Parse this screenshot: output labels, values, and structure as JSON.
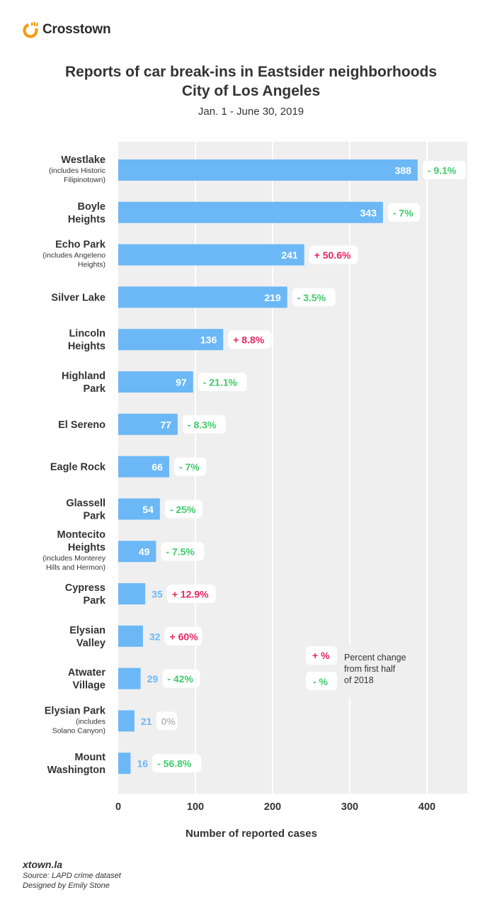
{
  "brand": {
    "name": "Crosstown",
    "icon": "crosstown-logo-icon",
    "color": "#f39c12"
  },
  "chart_data": {
    "type": "bar",
    "orientation": "horizontal",
    "title": "Reports of car break-ins in Eastsider neighborhoods",
    "title_line2": "City of Los Angeles",
    "subtitle": "Jan. 1 - June 30, 2019",
    "xlabel": "Number of reported cases",
    "xlim": [
      0,
      450
    ],
    "xticks": [
      0,
      100,
      200,
      300,
      400
    ],
    "xtick_labels": [
      "0",
      "100",
      "200",
      "300",
      "400"
    ],
    "grid": true,
    "bar_color": "#6cb8f6",
    "plot_bg": "#efefef",
    "pos_color": "#e8245e",
    "neg_color": "#3fcc6a",
    "zero_color": "#bbbbbb",
    "categories": [
      {
        "name": [
          "Westlake"
        ],
        "note": [
          "(includes Historic",
          "Filipinotown)"
        ],
        "value": 388,
        "change": "- 9.1%",
        "dir": "neg"
      },
      {
        "name": [
          "Boyle",
          "Heights"
        ],
        "note": [],
        "value": 343,
        "change": "- 7%",
        "dir": "neg"
      },
      {
        "name": [
          "Echo Park"
        ],
        "note": [
          "(includes Angeleno",
          "Heights)"
        ],
        "value": 241,
        "change": "+ 50.6%",
        "dir": "pos"
      },
      {
        "name": [
          "Silver Lake"
        ],
        "note": [],
        "value": 219,
        "change": "- 3.5%",
        "dir": "neg"
      },
      {
        "name": [
          "Lincoln",
          "Heights"
        ],
        "note": [],
        "value": 136,
        "change": "+ 8.8%",
        "dir": "pos"
      },
      {
        "name": [
          "Highland",
          "Park"
        ],
        "note": [],
        "value": 97,
        "change": "- 21.1%",
        "dir": "neg"
      },
      {
        "name": [
          "El Sereno"
        ],
        "note": [],
        "value": 77,
        "change": "- 8.3%",
        "dir": "neg"
      },
      {
        "name": [
          "Eagle Rock"
        ],
        "note": [],
        "value": 66,
        "change": "- 7%",
        "dir": "neg"
      },
      {
        "name": [
          "Glassell",
          "Park"
        ],
        "note": [],
        "value": 54,
        "change": "- 25%",
        "dir": "neg"
      },
      {
        "name": [
          "Montecito",
          "Heights"
        ],
        "note": [
          "(includes Monterey",
          "Hills and Hermon)"
        ],
        "value": 49,
        "change": "- 7.5%",
        "dir": "neg"
      },
      {
        "name": [
          "Cypress",
          "Park"
        ],
        "note": [],
        "value": 35,
        "change": "+ 12.9%",
        "dir": "pos"
      },
      {
        "name": [
          "Elysian",
          "Valley"
        ],
        "note": [],
        "value": 32,
        "change": "+ 60%",
        "dir": "pos"
      },
      {
        "name": [
          "Atwater",
          "Village"
        ],
        "note": [],
        "value": 29,
        "change": "- 42%",
        "dir": "neg"
      },
      {
        "name": [
          "Elysian Park"
        ],
        "note": [
          "(includes",
          "Solano Canyon)"
        ],
        "value": 21,
        "change": "0%",
        "dir": "zero"
      },
      {
        "name": [
          "Mount",
          "Washington"
        ],
        "note": [],
        "value": 16,
        "change": "- 56.8%",
        "dir": "neg"
      }
    ],
    "legend": {
      "pos_symbol": "+ %",
      "neg_symbol": "- %",
      "lines": [
        "Percent change",
        "from first half",
        "of 2018"
      ]
    }
  },
  "footer": {
    "site": "xtown.la",
    "source": "Source: LAPD crime dataset",
    "credit": "Designed by Emily Stone"
  }
}
